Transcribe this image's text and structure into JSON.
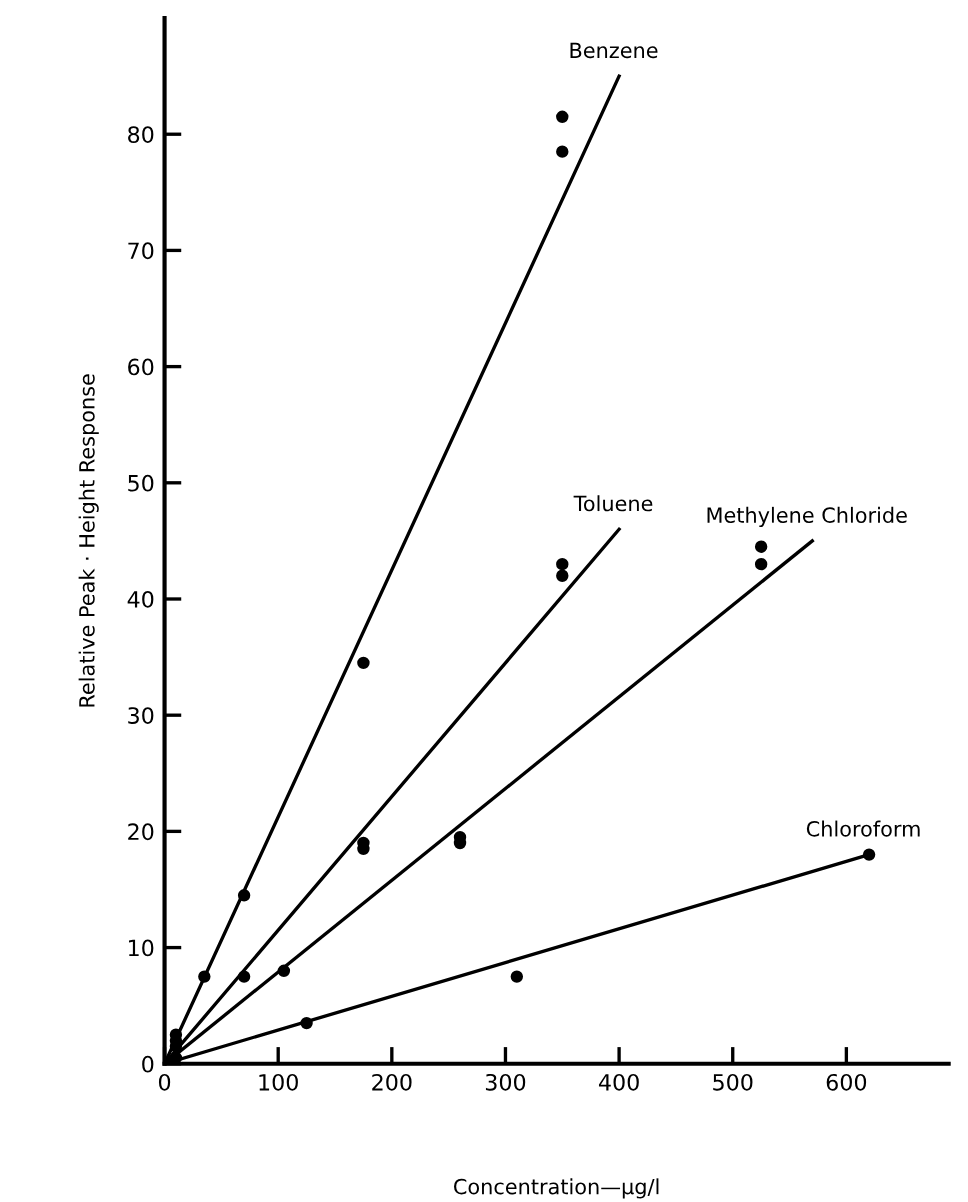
{
  "chart_data": {
    "type": "scatter",
    "xlabel": "Concentration—µg/l",
    "ylabel": "Relative Peak · Height Response",
    "xlim": [
      0,
      690
    ],
    "ylim": [
      0,
      90
    ],
    "xticks": [
      0,
      100,
      200,
      300,
      400,
      500,
      600
    ],
    "yticks": [
      0,
      10,
      20,
      30,
      40,
      50,
      60,
      70,
      80
    ],
    "grid": false,
    "marker": "circle",
    "series": [
      {
        "color": "#000000",
        "x": [
          10,
          35,
          70,
          175,
          350,
          350
        ],
        "values": [
          2.5,
          7.5,
          14.5,
          34.5,
          81.5,
          78.5
        ]
      },
      {
        "color": "#000000",
        "x": [
          10,
          70,
          175,
          175,
          350,
          350
        ],
        "values": [
          2,
          7.5,
          19,
          18.5,
          43,
          42
        ]
      },
      {
        "color": "#000000",
        "x": [
          10,
          105,
          260,
          260,
          525,
          525
        ],
        "values": [
          1.5,
          8,
          19.5,
          19,
          44.5,
          43
        ]
      },
      {
        "color": "#000000",
        "x": [
          10,
          125,
          310,
          620
        ],
        "values": [
          0.5,
          3.5,
          7.5,
          18
        ]
      },
      {
        "type": "line",
        "marker": "none",
        "name": "Benzene",
        "color": "#000000",
        "x": [
          0,
          400
        ],
        "values": [
          0,
          85
        ]
      },
      {
        "type": "line",
        "marker": "none",
        "name": "Toluene",
        "color": "#000000",
        "x": [
          0,
          400
        ],
        "values": [
          0,
          46
        ]
      },
      {
        "type": "line",
        "marker": "none",
        "name": "Methylene Chloride",
        "color": "#000000",
        "x": [
          0,
          570
        ],
        "values": [
          0,
          45
        ]
      },
      {
        "type": "line",
        "marker": "none",
        "name": "Chloroform",
        "color": "#000000",
        "x": [
          0,
          620
        ],
        "values": [
          0,
          18
        ]
      }
    ]
  }
}
